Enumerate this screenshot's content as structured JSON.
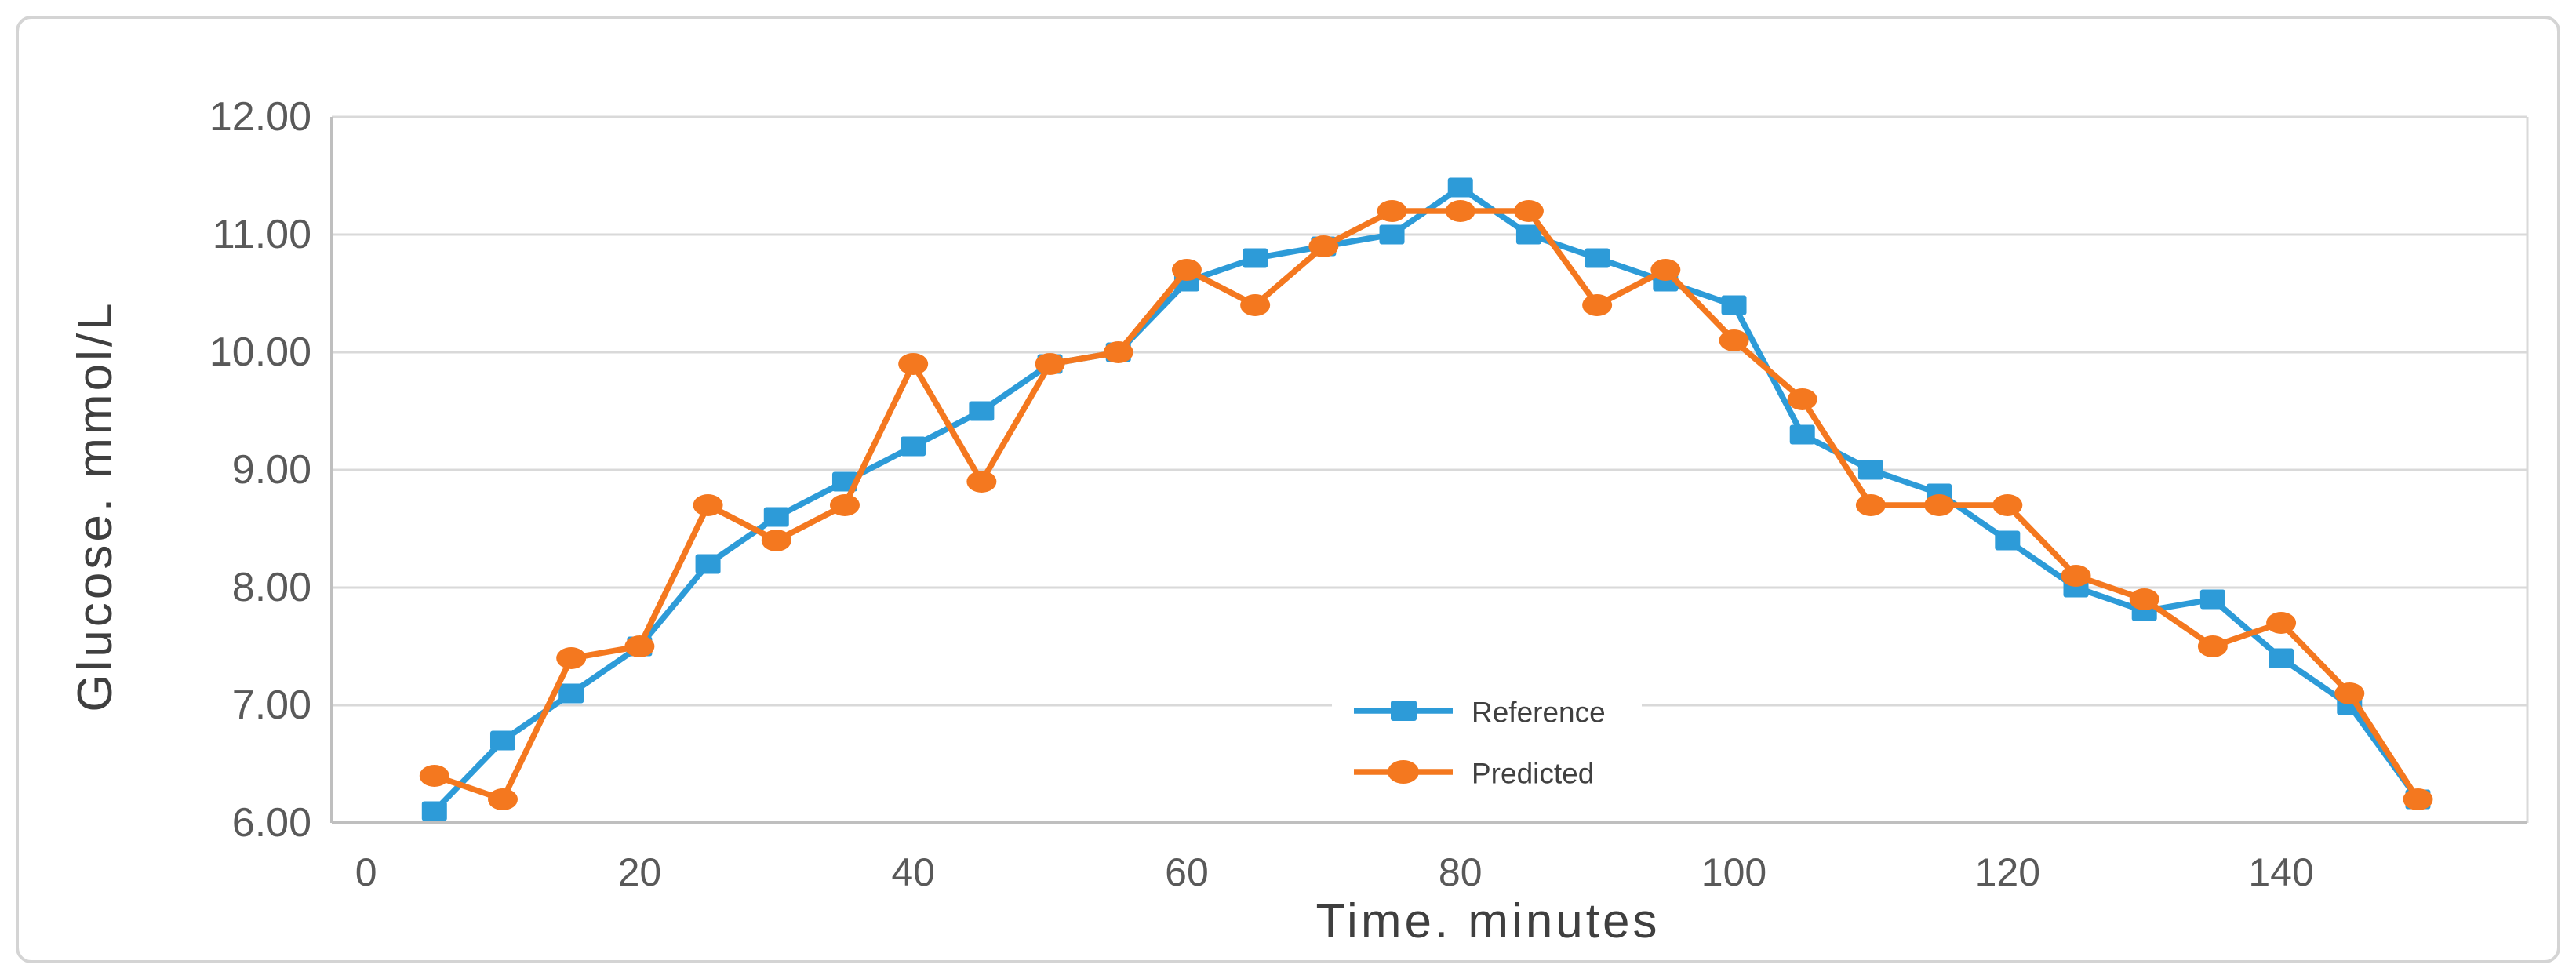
{
  "figure": {
    "background": "#ffffff",
    "border_color": "#d4d4d4"
  },
  "chart_data": {
    "type": "line",
    "title": "",
    "xlabel": "Time. minutes",
    "ylabel": "Glucose. mmol/L",
    "x": [
      5,
      10,
      15,
      20,
      25,
      30,
      35,
      40,
      45,
      50,
      55,
      60,
      65,
      70,
      75,
      80,
      85,
      90,
      95,
      100,
      105,
      110,
      115,
      120,
      125,
      130,
      135,
      140,
      145,
      150
    ],
    "series": [
      {
        "name": "Reference",
        "color": "#2d9bd8",
        "marker": "square",
        "values": [
          6.1,
          6.7,
          7.1,
          7.5,
          8.2,
          8.6,
          8.9,
          9.2,
          9.5,
          9.9,
          10.0,
          10.6,
          10.8,
          10.9,
          11.0,
          11.4,
          11.0,
          10.8,
          10.6,
          10.4,
          9.3,
          9.0,
          8.8,
          8.4,
          8.0,
          7.8,
          7.9,
          7.4,
          7.0,
          6.2
        ]
      },
      {
        "name": "Predicted",
        "color": "#f4781f",
        "marker": "circle",
        "values": [
          6.4,
          6.2,
          7.4,
          7.5,
          8.7,
          8.4,
          8.7,
          9.9,
          8.9,
          9.9,
          10.0,
          10.7,
          10.4,
          10.9,
          11.2,
          11.2,
          11.2,
          10.4,
          10.7,
          10.1,
          9.6,
          8.7,
          8.7,
          8.7,
          8.1,
          7.9,
          7.5,
          7.7,
          7.1,
          6.2
        ]
      }
    ],
    "x_ticks": [
      0,
      20,
      40,
      60,
      80,
      100,
      120,
      140
    ],
    "y_tick_labels": [
      "12.00",
      "11.00",
      "10.00",
      "9.00",
      "8.00",
      "7.00",
      "6.00"
    ],
    "xlim": [
      -2.5,
      158
    ],
    "ylim": [
      6,
      12
    ],
    "grid": "horizontal",
    "legend_position": "inside-bottom-center",
    "colors": {
      "grid": "#d9d9d9",
      "axis": "#bfbfbf",
      "tick_text": "#595959",
      "axis_title_text": "#3f3f3f",
      "legend_text": "#404040"
    }
  }
}
